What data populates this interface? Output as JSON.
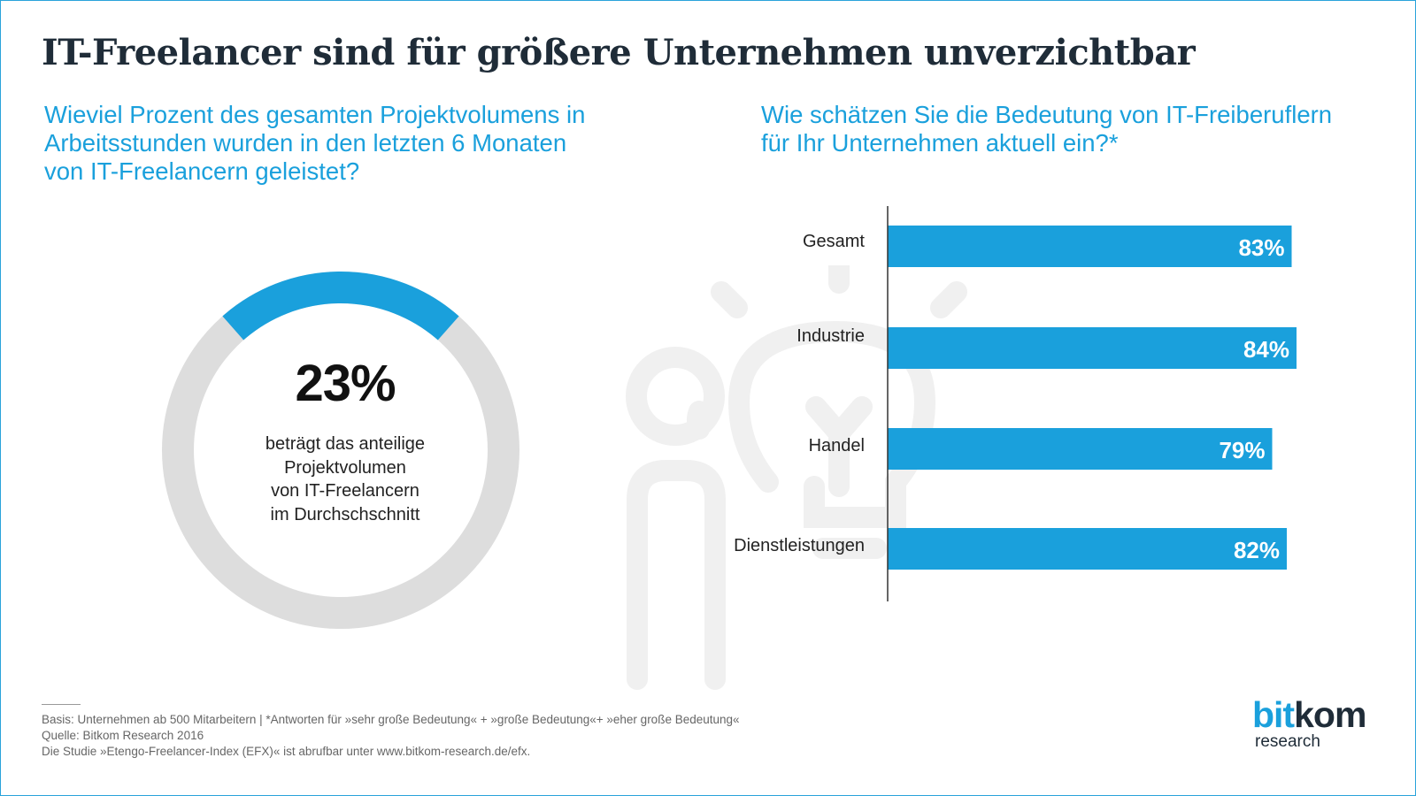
{
  "title": "IT-Freelancer sind für größere Unternehmen unverzichtbar",
  "left_question": [
    "Wieviel Prozent des gesamten Projektvolumens in",
    "Arbeitsstunden wurden in den letzten 6 Monaten",
    "von IT-Freelancern geleistet?"
  ],
  "right_question": [
    "Wie schätzen Sie die Bedeutung von IT-Freiberuflern",
    "für Ihr Unternehmen aktuell ein?*"
  ],
  "donut": {
    "value_label": "23%",
    "caption": [
      "beträgt das anteilige",
      "Projektvolumen",
      "von IT-Freelancern",
      "im Durchschschnitt"
    ]
  },
  "colors": {
    "accent": "#1aa0dc",
    "donut_rest": "#dddddd",
    "title": "#1f2c38",
    "watermark": "#f0f0f0"
  },
  "chart_data": [
    {
      "type": "pie",
      "variant": "donut",
      "categories": [
        "IT-Freelancer"
      ],
      "values": [
        23
      ],
      "value_labels": [
        "23%"
      ],
      "total": 100
    },
    {
      "type": "bar",
      "orientation": "horizontal",
      "categories": [
        "Gesamt",
        "Industrie",
        "Handel",
        "Dienstleistungen"
      ],
      "values": [
        83,
        84,
        79,
        82
      ],
      "value_labels": [
        "83%",
        "84%",
        "79%",
        "82%"
      ],
      "xlim": [
        0,
        100
      ],
      "grid": false
    }
  ],
  "footnotes": [
    "Basis: Unternehmen ab 500 Mitarbeitern | *Antworten für »sehr große Bedeutung« + »große Bedeutung«+ »eher große Bedeutung«",
    "Quelle: Bitkom Research 2016",
    "Die Studie »Etengo-Freelancer-Index (EFX)« ist abrufbar unter www.bitkom-research.de/efx."
  ],
  "logo": {
    "part1": "bit",
    "part2": "kom",
    "sub": "research"
  }
}
